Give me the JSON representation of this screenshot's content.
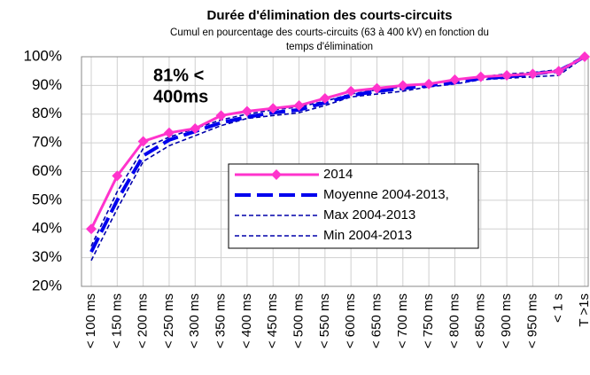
{
  "chart_data": {
    "type": "line",
    "title": "Durée d'élimination des courts-circuits",
    "subtitle_lines": [
      "Cumul en pourcentage des courts-circuits (63 à 400 kV) en fonction du",
      "temps d'élimination"
    ],
    "annotation_lines": [
      "81% <",
      "400ms"
    ],
    "annotation_color": "#ff33cc",
    "categories": [
      "< 100 ms",
      "< 150 ms",
      "< 200 ms",
      "< 250 ms",
      "< 300 ms",
      "< 350 ms",
      "< 400 ms",
      "< 450 ms",
      "< 500 ms",
      "< 550 ms",
      "< 600 ms",
      "< 650 ms",
      "< 700 ms",
      "< 750 ms",
      "< 800 ms",
      "< 850 ms",
      "< 900 ms",
      "< 950 ms",
      "< 1 s",
      "T >1s"
    ],
    "series": [
      {
        "name": "2014",
        "color": "#ff33cc",
        "style": "solid",
        "marker": "diamond",
        "values": [
          40,
          58.5,
          70.5,
          73.5,
          75,
          79.5,
          81,
          82,
          83,
          85.5,
          88,
          89,
          90,
          90.5,
          92,
          93,
          93.5,
          94,
          95,
          100
        ]
      },
      {
        "name": "Moyenne 2004-2013,",
        "color": "#0000ee",
        "style": "long-dash",
        "values": [
          32,
          50,
          65.5,
          71,
          74,
          77,
          79,
          80.5,
          81.5,
          84,
          86.5,
          88,
          89,
          90,
          91,
          92.5,
          93,
          94,
          95,
          100
        ]
      },
      {
        "name": "Max 2004-2013",
        "color": "#0000aa",
        "style": "dash",
        "values": [
          34,
          53,
          68,
          72,
          75,
          78,
          80,
          81.5,
          82.5,
          84.5,
          87,
          88.5,
          89.5,
          90.5,
          92,
          93,
          94,
          94.5,
          95.5,
          100
        ]
      },
      {
        "name": "Min 2004-2013",
        "color": "#0000aa",
        "style": "dash",
        "values": [
          29,
          47,
          63.5,
          69,
          72.5,
          76,
          78.5,
          79.5,
          80.5,
          83,
          86,
          87,
          88,
          89.5,
          90.5,
          92,
          92.5,
          93,
          93.5,
          100
        ]
      }
    ],
    "ylim": [
      20,
      100
    ],
    "yticks": [
      {
        "value": 20,
        "label": "20%"
      },
      {
        "value": 30,
        "label": "30%"
      },
      {
        "value": 40,
        "label": "40%"
      },
      {
        "value": 50,
        "label": "50%"
      },
      {
        "value": 60,
        "label": "60%"
      },
      {
        "value": 70,
        "label": "70%"
      },
      {
        "value": 80,
        "label": "80%"
      },
      {
        "value": 90,
        "label": "90%"
      },
      {
        "value": 100,
        "label": "100%"
      }
    ],
    "grid": true
  }
}
